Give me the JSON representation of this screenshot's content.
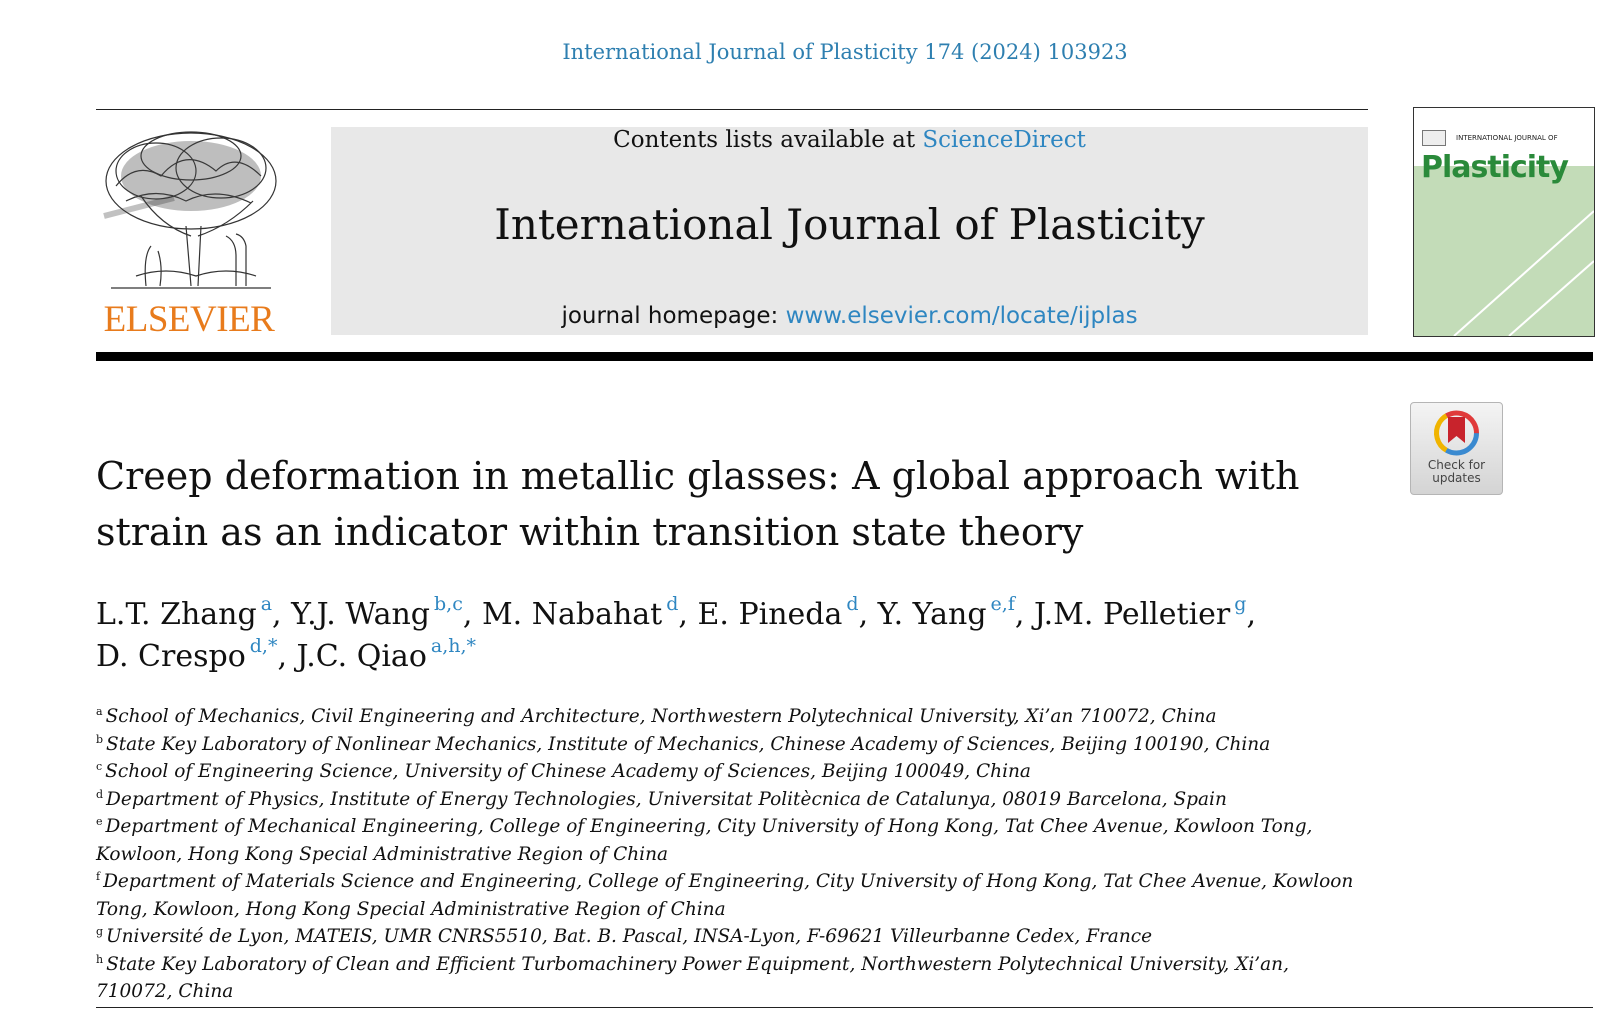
{
  "citation": "International Journal of Plasticity 174 (2024) 103923",
  "masthead": {
    "contents_prefix": "Contents lists available at ",
    "contents_link": "ScienceDirect",
    "journal_title": "International Journal of Plasticity",
    "homepage_prefix": "journal homepage: ",
    "homepage_link": "www.elsevier.com/locate/ijplas"
  },
  "publisher": {
    "name": "ELSEVIER"
  },
  "cover": {
    "title_top": "INTERNATIONAL JOURNAL OF",
    "title": "Plasticity"
  },
  "check_updates": {
    "line1": "Check for",
    "line2": "updates"
  },
  "article": {
    "title_line1": "Creep deformation in metallic glasses: A global approach with",
    "title_line2": "strain as an indicator within transition state theory"
  },
  "authors": [
    {
      "name": "L.T. Zhang",
      "affs": "a"
    },
    {
      "name": "Y.J. Wang",
      "affs": "b,c"
    },
    {
      "name": "M. Nabahat",
      "affs": "d"
    },
    {
      "name": "E. Pineda",
      "affs": "d"
    },
    {
      "name": "Y. Yang",
      "affs": "e,f"
    },
    {
      "name": "J.M. Pelletier",
      "affs": "g"
    },
    {
      "name": "D. Crespo",
      "affs": "d,*"
    },
    {
      "name": "J.C. Qiao",
      "affs": "a,h,*"
    }
  ],
  "affiliations": [
    {
      "label": "a",
      "text": "School of Mechanics, Civil Engineering and Architecture, Northwestern Polytechnical University, Xi’an 710072, China"
    },
    {
      "label": "b",
      "text": "State Key Laboratory of Nonlinear Mechanics, Institute of Mechanics, Chinese Academy of Sciences, Beijing 100190, China"
    },
    {
      "label": "c",
      "text": "School of Engineering Science, University of Chinese Academy of Sciences, Beijing 100049, China"
    },
    {
      "label": "d",
      "text": "Department of Physics, Institute of Energy Technologies, Universitat Politècnica de Catalunya, 08019 Barcelona, Spain"
    },
    {
      "label": "e",
      "text": "Department of Mechanical Engineering, College of Engineering, City University of Hong Kong, Tat Chee Avenue, Kowloon Tong, Kowloon, Hong Kong Special Administrative Region of China"
    },
    {
      "label": "f",
      "text": "Department of Materials Science and Engineering, College of Engineering, City University of Hong Kong, Tat Chee Avenue, Kowloon Tong, Kowloon, Hong Kong Special Administrative Region of China"
    },
    {
      "label": "g",
      "text": "Université de Lyon, MATEIS, UMR CNRS5510, Bat. B. Pascal, INSA-Lyon, F-69621 Villeurbanne Cedex, France"
    },
    {
      "label": "h",
      "text": "State Key Laboratory of Clean and Efficient Turbomachinery Power Equipment, Northwestern Polytechnical University, Xi’an, 710072, China"
    }
  ]
}
